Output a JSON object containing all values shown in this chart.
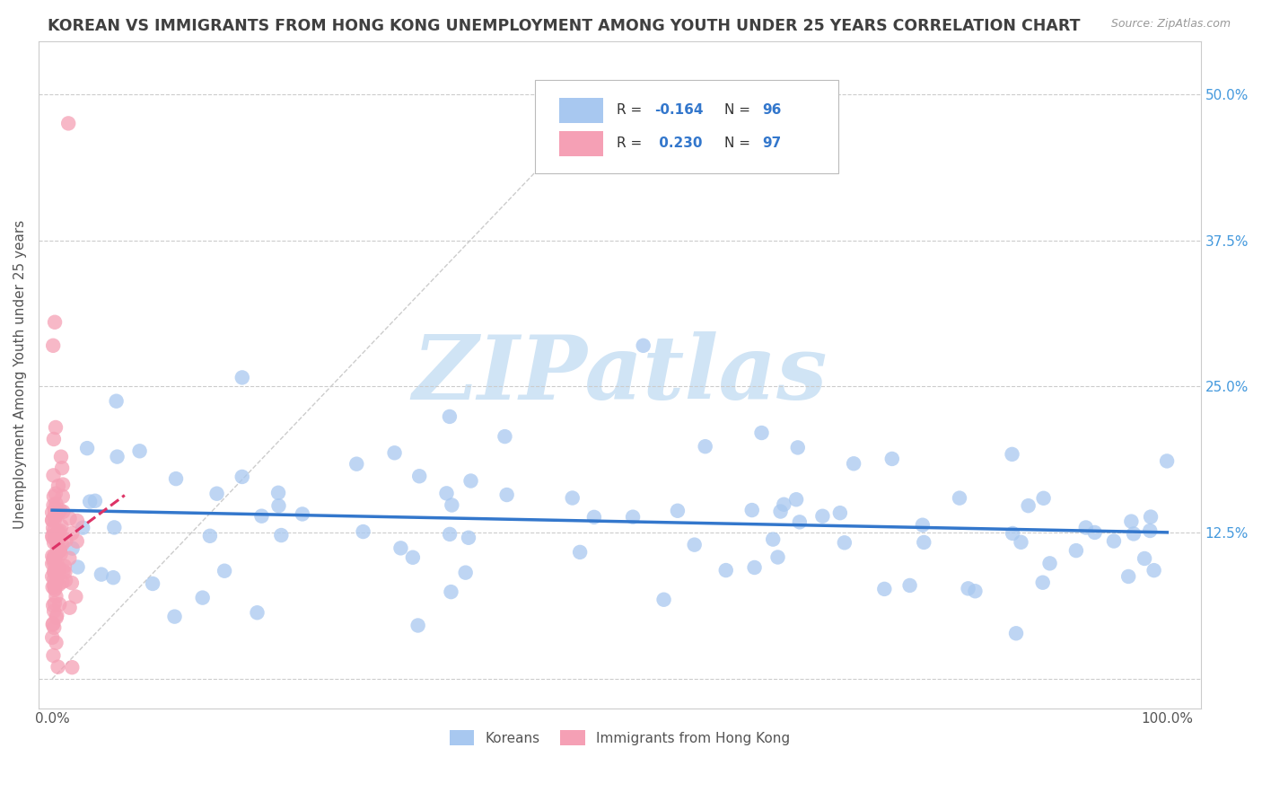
{
  "title": "KOREAN VS IMMIGRANTS FROM HONG KONG UNEMPLOYMENT AMONG YOUTH UNDER 25 YEARS CORRELATION CHART",
  "source": "Source: ZipAtlas.com",
  "ylabel": "Unemployment Among Youth under 25 years",
  "yticks": [
    0.0,
    0.125,
    0.25,
    0.375,
    0.5
  ],
  "ytick_labels": [
    "",
    "12.5%",
    "25.0%",
    "37.5%",
    "50.0%"
  ],
  "legend_labels": [
    "Koreans",
    "Immigrants from Hong Kong"
  ],
  "korean_R": -0.164,
  "korean_N": 96,
  "hk_R": 0.23,
  "hk_N": 97,
  "korean_color": "#a8c8f0",
  "hk_color": "#f5a0b5",
  "korean_line_color": "#3377cc",
  "hk_line_color": "#dd3366",
  "diagonal_color": "#cccccc",
  "background_color": "#ffffff",
  "title_color": "#404040",
  "source_color": "#999999",
  "axis_label_color": "#555555",
  "right_tick_color": "#4499dd",
  "watermark_color": "#d0e4f5",
  "watermark_text": "ZIPatlas",
  "legend_text_color": "#3377cc",
  "legend_label_color": "#333333"
}
